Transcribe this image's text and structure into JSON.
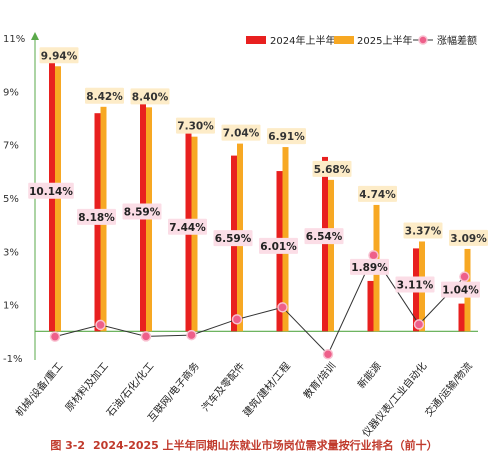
{
  "chart_data": {
    "type": "bar",
    "categories": [
      "机械/设备/重工",
      "原材料及加工",
      "石油/石化/化工",
      "互联网/电子商务",
      "汽车及零配件",
      "建筑/建材/工程",
      "教育/培训",
      "新能源",
      "仪器仪表/工业自动化",
      "交通/运输/物流"
    ],
    "series": [
      {
        "name": "2024年上半年",
        "color": "#e8201f",
        "values": [
          10.14,
          8.18,
          8.59,
          7.44,
          6.59,
          6.01,
          6.54,
          1.89,
          3.11,
          1.04
        ]
      },
      {
        "name": "2025上半年",
        "color": "#f7a823",
        "values": [
          9.94,
          8.42,
          8.4,
          7.3,
          7.04,
          6.91,
          5.68,
          4.74,
          3.37,
          3.09
        ]
      },
      {
        "name": "涨幅差额",
        "type": "line",
        "color": "#ee5f8a",
        "values": [
          -0.2,
          0.24,
          -0.19,
          -0.14,
          0.45,
          0.9,
          -0.86,
          2.85,
          0.26,
          2.05
        ]
      }
    ],
    "labels_2024": [
      "10.14%",
      "8.18%",
      "8.59%",
      "7.44%",
      "6.59%",
      "6.01%",
      "6.54%",
      "1.89%",
      "3.11%",
      "1.04%"
    ],
    "labels_2025": [
      "9.94%",
      "8.42%",
      "8.40%",
      "7.30%",
      "7.04%",
      "6.91%",
      "5.68%",
      "4.74%",
      "3.37%",
      "3.09%"
    ],
    "y_ticks": [
      "-1%",
      "1%",
      "3%",
      "5%",
      "7%",
      "9%",
      "11%"
    ],
    "ylim": [
      -1,
      11
    ],
    "legend_position": "top-right",
    "grid": false
  },
  "caption": {
    "figure_number": "图 3-2",
    "title": "2024-2025 上半年同期山东就业市场岗位需求量按行业排名（前十）"
  }
}
